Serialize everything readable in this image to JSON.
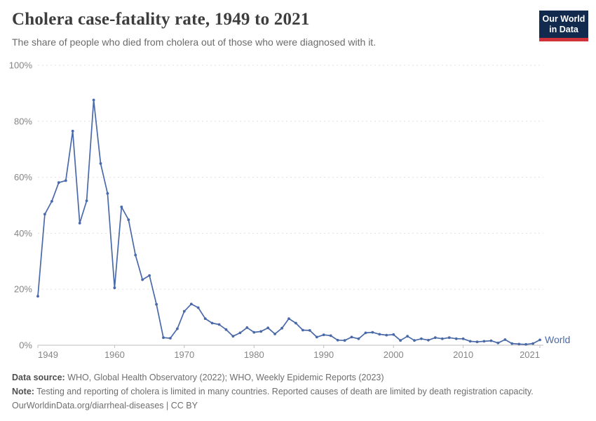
{
  "header": {
    "title": "Cholera case-fatality rate, 1949 to 2021",
    "subtitle": "The share of people who died from cholera out of those who were diagnosed with it.",
    "logo": {
      "line1": "Our World",
      "line2": "in Data"
    }
  },
  "chart_data": {
    "type": "line",
    "title": "Cholera case-fatality rate, 1949 to 2021",
    "xlabel": "",
    "ylabel": "",
    "unit": "%",
    "xlim": [
      1949,
      2021
    ],
    "ylim": [
      0,
      100
    ],
    "grid": "horizontal-dashed",
    "legend_position": "end-of-line",
    "xticks": [
      1949,
      1960,
      1970,
      1980,
      1990,
      2000,
      2010,
      2021
    ],
    "xtick_labels": [
      "1949",
      "1960",
      "1970",
      "1980",
      "1990",
      "2000",
      "2010",
      "2021"
    ],
    "yticks": [
      0,
      20,
      40,
      60,
      80,
      100
    ],
    "ytick_labels": [
      "0%",
      "20%",
      "40%",
      "60%",
      "80%",
      "100%"
    ],
    "x": [
      1949,
      1950,
      1951,
      1952,
      1953,
      1954,
      1955,
      1956,
      1957,
      1958,
      1959,
      1960,
      1961,
      1962,
      1963,
      1964,
      1965,
      1966,
      1967,
      1968,
      1969,
      1970,
      1971,
      1972,
      1973,
      1974,
      1975,
      1976,
      1977,
      1978,
      1979,
      1980,
      1981,
      1982,
      1983,
      1984,
      1985,
      1986,
      1987,
      1988,
      1989,
      1990,
      1991,
      1992,
      1993,
      1994,
      1995,
      1996,
      1997,
      1998,
      1999,
      2000,
      2001,
      2002,
      2003,
      2004,
      2005,
      2006,
      2007,
      2008,
      2009,
      2010,
      2011,
      2012,
      2013,
      2014,
      2015,
      2016,
      2017,
      2018,
      2019,
      2020,
      2021
    ],
    "series": [
      {
        "name": "World",
        "values": [
          17.5,
          46.8,
          51.4,
          58.1,
          58.8,
          76.5,
          43.6,
          51.6,
          87.6,
          64.9,
          54.2,
          20.5,
          49.4,
          44.8,
          32.2,
          23.4,
          24.9,
          14.6,
          2.7,
          2.5,
          5.9,
          12.1,
          14.7,
          13.4,
          9.5,
          7.9,
          7.4,
          5.6,
          3.2,
          4.4,
          6.3,
          4.6,
          4.9,
          6.2,
          4.0,
          6.1,
          9.5,
          7.9,
          5.4,
          5.3,
          2.9,
          3.7,
          3.4,
          1.8,
          1.7,
          2.9,
          2.3,
          4.4,
          4.6,
          3.9,
          3.6,
          3.8,
          1.7,
          3.2,
          1.7,
          2.3,
          1.8,
          2.7,
          2.3,
          2.7,
          2.3,
          2.3,
          1.4,
          1.2,
          1.4,
          1.6,
          0.8,
          2.0,
          0.6,
          0.4,
          0.3,
          0.6,
          1.9
        ]
      }
    ]
  },
  "footer": {
    "source_label": "Data source:",
    "source_text": "WHO, Global Health Observatory (2022); WHO, Weekly Epidemic Reports (2023)",
    "note_label": "Note:",
    "note_text": "Testing and reporting of cholera is limited in many countries. Reported causes of death are limited by death registration capacity.",
    "citation": "OurWorldinData.org/diarrheal-diseases | CC BY"
  },
  "colors": {
    "series": "#4a69a8",
    "logo_bg": "#112a4d",
    "logo_accent": "#d13239",
    "title": "#3d3d3d",
    "subtitle": "#6b6b6b",
    "axis_label": "#858585",
    "gridline": "#e0e0e0",
    "axis_line": "#bdbdbd",
    "footer_label": "#4f4f4f",
    "footer_text": "#6e6e6e"
  }
}
